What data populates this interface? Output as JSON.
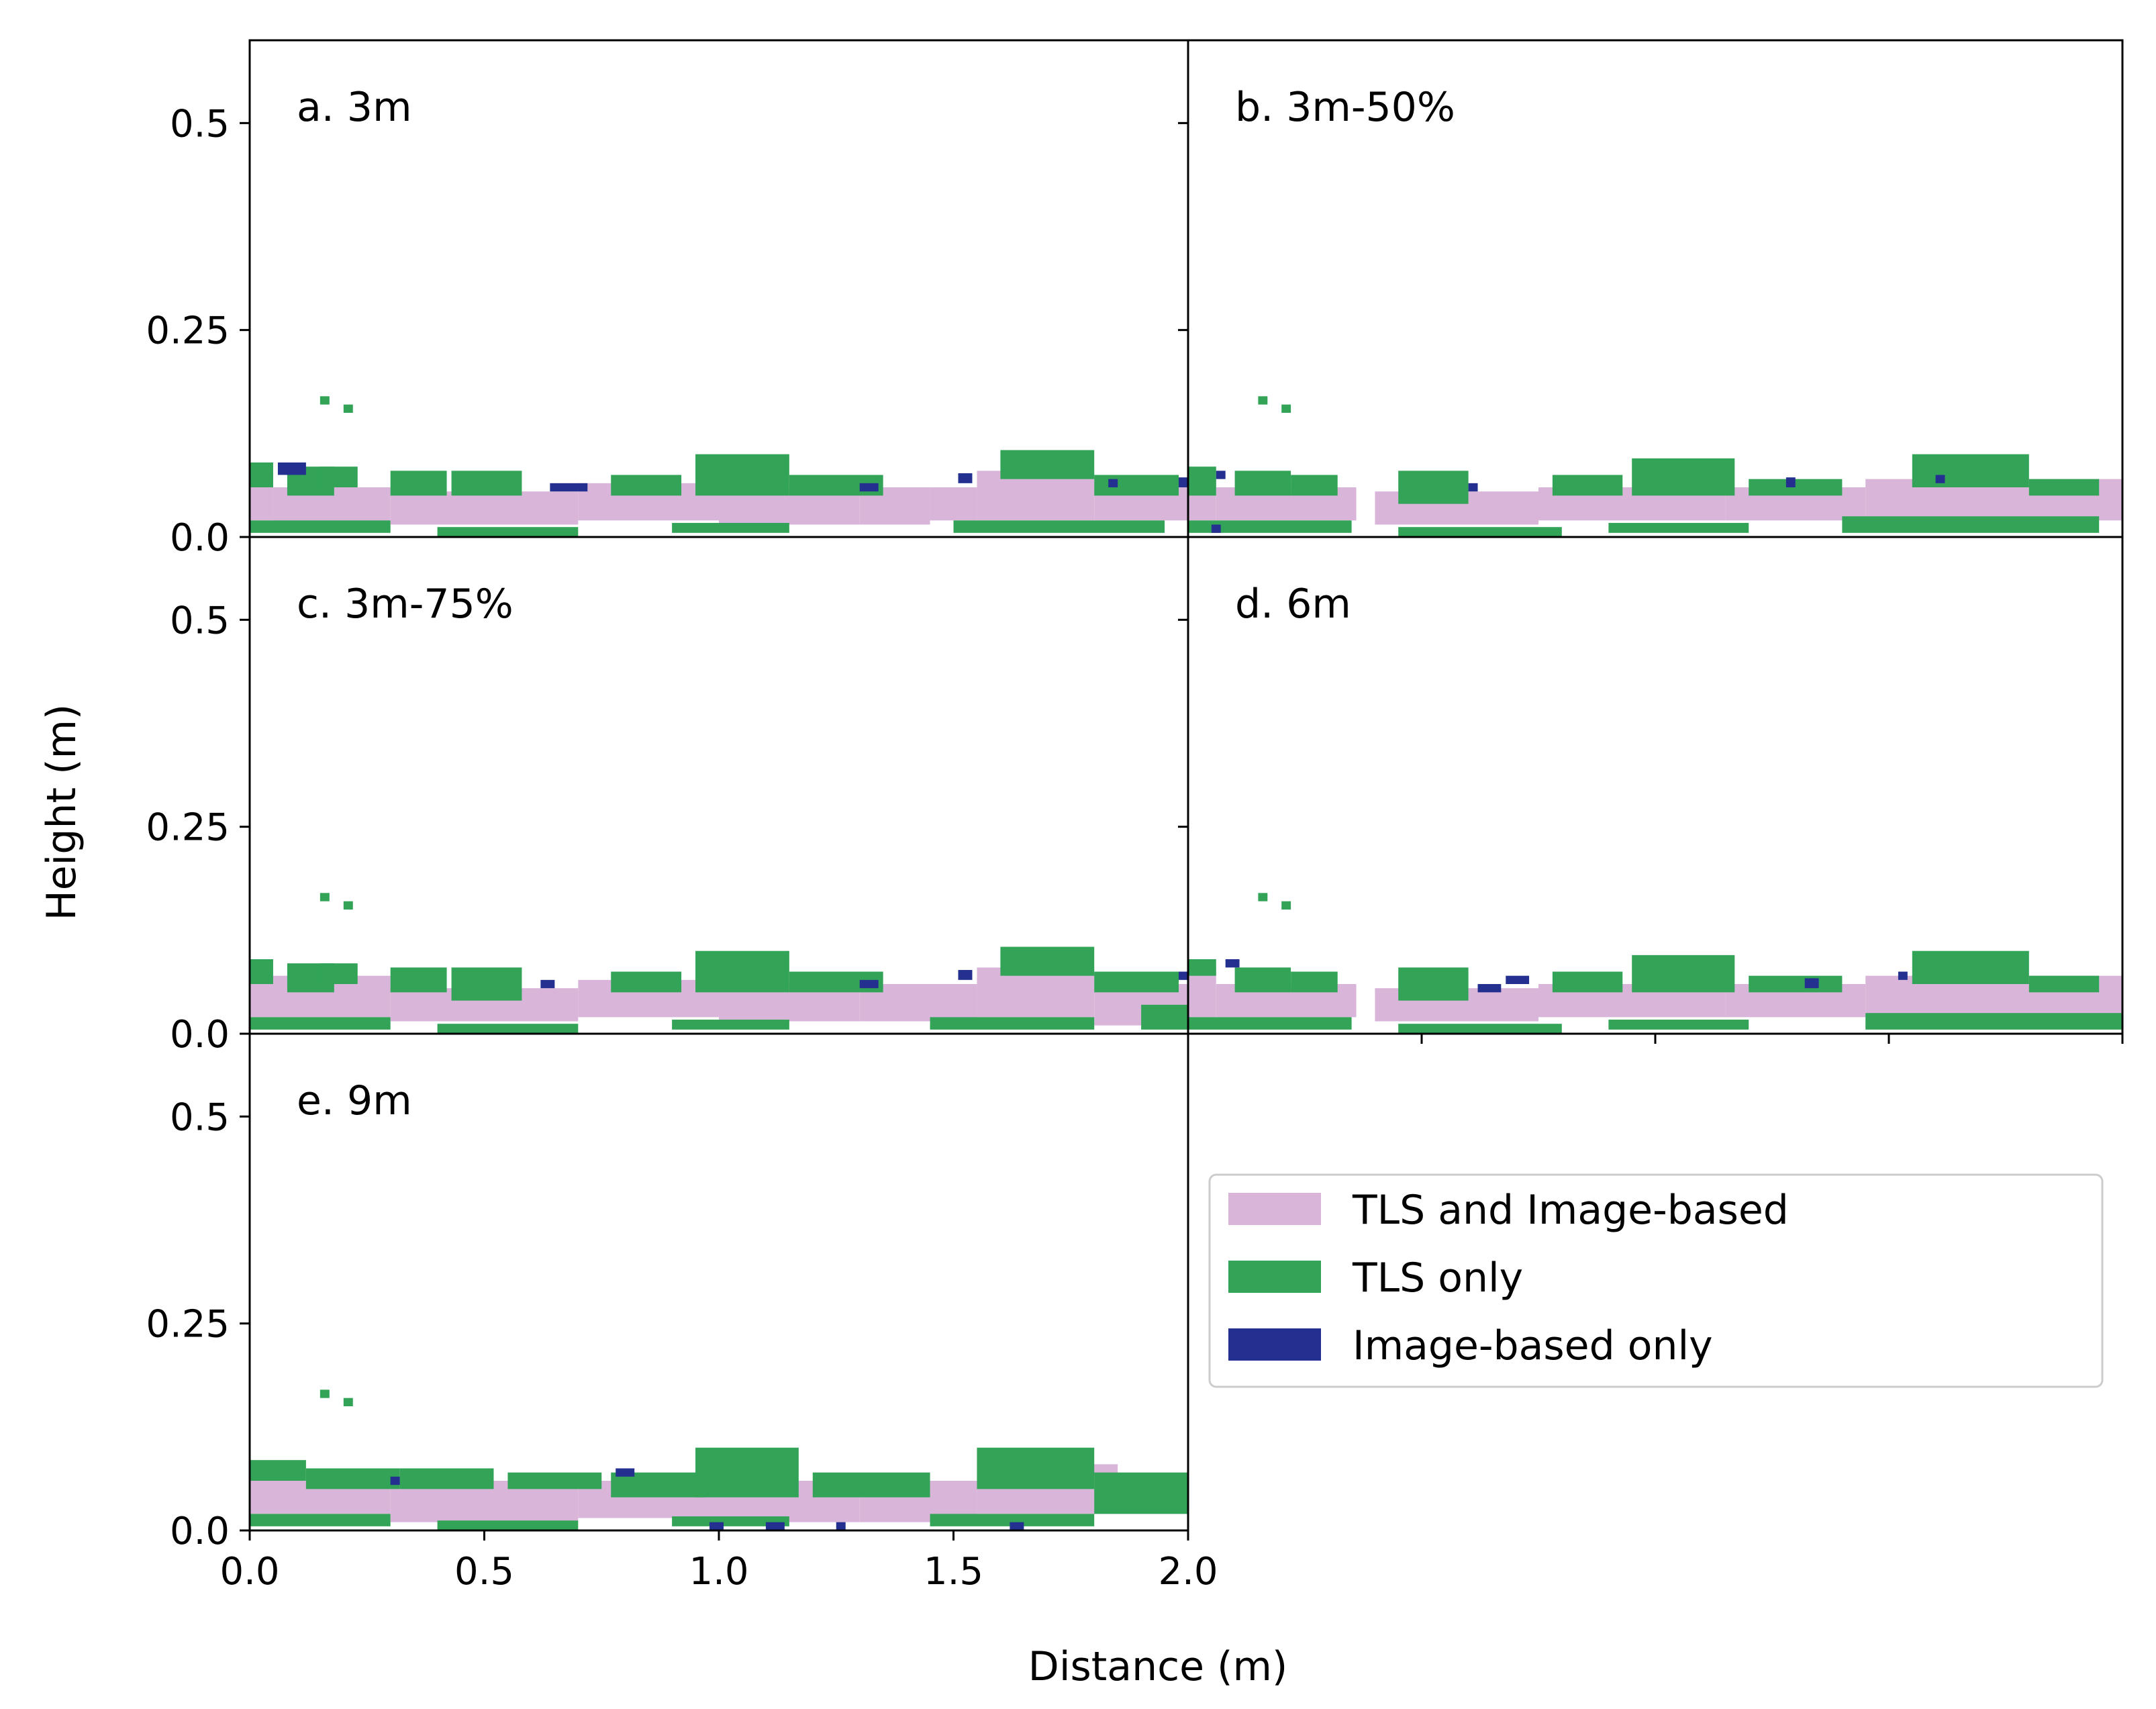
{
  "figure": {
    "xlabel": "Distance (m)",
    "ylabel": "Height (m)"
  },
  "colors": {
    "both": "#d9b6d9",
    "tls_only": "#33a457",
    "image_only": "#24308f",
    "axis": "#000000",
    "background": "#ffffff"
  },
  "legend": {
    "location": "lower-right empty panel",
    "items": [
      {
        "key": "both",
        "label": "TLS and Image-based"
      },
      {
        "key": "tls_only",
        "label": "TLS only"
      },
      {
        "key": "image_only",
        "label": "Image-based only"
      }
    ]
  },
  "chart_data": [
    {
      "type": "heatmap",
      "id": "a",
      "title": "a. 3m",
      "xlim": [
        0.0,
        2.0
      ],
      "ylim": [
        0.0,
        0.6
      ],
      "xticks": [
        "0.0",
        "0.5",
        "1.0",
        "1.5",
        "2.0"
      ],
      "yticks": [
        "0.0",
        "0.25",
        "0.5"
      ],
      "categories": [
        "TLS and Image-based",
        "TLS only",
        "Image-based only"
      ],
      "series": [
        {
          "name": "TLS and Image-based",
          "cells": [
            [
              0.0,
              0.02,
              0.05,
              0.06
            ],
            [
              0.05,
              0.01,
              0.25,
              0.05
            ],
            [
              0.3,
              0.015,
              0.4,
              0.04
            ],
            [
              0.7,
              0.02,
              0.3,
              0.045
            ],
            [
              1.0,
              0.015,
              0.3,
              0.045
            ],
            [
              1.3,
              0.015,
              0.15,
              0.045
            ],
            [
              1.45,
              0.02,
              0.1,
              0.04
            ],
            [
              1.55,
              0.02,
              0.25,
              0.06
            ],
            [
              1.8,
              0.02,
              0.2,
              0.04
            ]
          ]
        },
        {
          "name": "TLS only",
          "cells": [
            [
              0.0,
              0.06,
              0.05,
              0.03
            ],
            [
              0.08,
              0.05,
              0.1,
              0.035
            ],
            [
              0.15,
              0.06,
              0.08,
              0.025
            ],
            [
              0.3,
              0.05,
              0.12,
              0.03
            ],
            [
              0.43,
              0.05,
              0.15,
              0.03
            ],
            [
              0.77,
              0.05,
              0.15,
              0.025
            ],
            [
              0.95,
              0.05,
              0.2,
              0.05
            ],
            [
              1.15,
              0.05,
              0.2,
              0.025
            ],
            [
              1.6,
              0.07,
              0.2,
              0.035
            ],
            [
              1.8,
              0.05,
              0.18,
              0.025
            ],
            [
              0.0,
              0.005,
              0.3,
              0.015
            ],
            [
              0.4,
              0.0,
              0.3,
              0.012
            ],
            [
              0.9,
              0.005,
              0.25,
              0.012
            ],
            [
              1.5,
              0.005,
              0.45,
              0.015
            ],
            [
              0.15,
              0.16,
              0.02,
              0.01
            ],
            [
              0.2,
              0.15,
              0.02,
              0.01
            ]
          ]
        },
        {
          "name": "Image-based only",
          "cells": [
            [
              0.06,
              0.075,
              0.06,
              0.015
            ],
            [
              0.64,
              0.055,
              0.08,
              0.01
            ],
            [
              1.3,
              0.055,
              0.04,
              0.01
            ],
            [
              1.51,
              0.065,
              0.03,
              0.012
            ],
            [
              1.83,
              0.06,
              0.02,
              0.01
            ],
            [
              1.98,
              0.06,
              0.02,
              0.012
            ]
          ]
        }
      ]
    },
    {
      "type": "heatmap",
      "id": "b",
      "title": "b. 3m-50%",
      "xlim": [
        0.0,
        2.0
      ],
      "ylim": [
        0.0,
        0.6
      ],
      "xticks": [],
      "yticks": [],
      "categories": [
        "TLS and Image-based",
        "TLS only",
        "Image-based only"
      ],
      "series": [
        {
          "name": "TLS and Image-based",
          "cells": [
            [
              0.0,
              0.02,
              0.06,
              0.05
            ],
            [
              0.06,
              0.02,
              0.3,
              0.04
            ],
            [
              0.4,
              0.015,
              0.35,
              0.04
            ],
            [
              0.75,
              0.02,
              0.4,
              0.04
            ],
            [
              1.15,
              0.02,
              0.3,
              0.04
            ],
            [
              1.45,
              0.02,
              0.3,
              0.05
            ],
            [
              1.75,
              0.02,
              0.25,
              0.05
            ]
          ]
        },
        {
          "name": "TLS only",
          "cells": [
            [
              0.0,
              0.05,
              0.06,
              0.035
            ],
            [
              0.1,
              0.05,
              0.12,
              0.03
            ],
            [
              0.22,
              0.05,
              0.1,
              0.025
            ],
            [
              0.45,
              0.04,
              0.15,
              0.04
            ],
            [
              0.78,
              0.05,
              0.15,
              0.025
            ],
            [
              0.95,
              0.05,
              0.22,
              0.045
            ],
            [
              1.2,
              0.05,
              0.2,
              0.02
            ],
            [
              1.55,
              0.06,
              0.25,
              0.04
            ],
            [
              1.8,
              0.05,
              0.15,
              0.02
            ],
            [
              0.0,
              0.005,
              0.35,
              0.015
            ],
            [
              0.45,
              0.0,
              0.35,
              0.012
            ],
            [
              0.9,
              0.005,
              0.3,
              0.012
            ],
            [
              1.4,
              0.005,
              0.55,
              0.02
            ],
            [
              0.15,
              0.16,
              0.02,
              0.01
            ],
            [
              0.2,
              0.15,
              0.02,
              0.01
            ]
          ]
        },
        {
          "name": "Image-based only",
          "cells": [
            [
              0.06,
              0.07,
              0.02,
              0.01
            ],
            [
              0.6,
              0.055,
              0.02,
              0.01
            ],
            [
              1.28,
              0.06,
              0.02,
              0.012
            ],
            [
              1.6,
              0.065,
              0.02,
              0.01
            ],
            [
              0.05,
              0.005,
              0.02,
              0.01
            ]
          ]
        }
      ]
    },
    {
      "type": "heatmap",
      "id": "c",
      "title": "c. 3m-75%",
      "xlim": [
        0.0,
        2.0
      ],
      "ylim": [
        0.0,
        0.6
      ],
      "xticks": [],
      "yticks": [
        "0.0",
        "0.25",
        "0.5"
      ],
      "categories": [
        "TLS and Image-based",
        "TLS only",
        "Image-based only"
      ],
      "series": [
        {
          "name": "TLS and Image-based",
          "cells": [
            [
              0.0,
              0.02,
              0.3,
              0.05
            ],
            [
              0.3,
              0.015,
              0.4,
              0.04
            ],
            [
              0.7,
              0.02,
              0.3,
              0.045
            ],
            [
              1.0,
              0.015,
              0.3,
              0.045
            ],
            [
              1.3,
              0.015,
              0.25,
              0.045
            ],
            [
              1.55,
              0.02,
              0.25,
              0.06
            ],
            [
              1.8,
              0.01,
              0.2,
              0.05
            ]
          ]
        },
        {
          "name": "TLS only",
          "cells": [
            [
              0.0,
              0.06,
              0.05,
              0.03
            ],
            [
              0.08,
              0.05,
              0.1,
              0.035
            ],
            [
              0.15,
              0.06,
              0.08,
              0.025
            ],
            [
              0.3,
              0.05,
              0.12,
              0.03
            ],
            [
              0.43,
              0.04,
              0.15,
              0.04
            ],
            [
              0.77,
              0.05,
              0.15,
              0.025
            ],
            [
              0.95,
              0.05,
              0.2,
              0.05
            ],
            [
              1.15,
              0.05,
              0.2,
              0.025
            ],
            [
              1.6,
              0.07,
              0.2,
              0.035
            ],
            [
              1.8,
              0.05,
              0.18,
              0.025
            ],
            [
              0.0,
              0.005,
              0.3,
              0.015
            ],
            [
              0.4,
              0.0,
              0.3,
              0.012
            ],
            [
              0.9,
              0.005,
              0.25,
              0.012
            ],
            [
              1.45,
              0.005,
              0.35,
              0.015
            ],
            [
              1.9,
              0.005,
              0.1,
              0.03
            ],
            [
              0.15,
              0.16,
              0.02,
              0.01
            ],
            [
              0.2,
              0.15,
              0.02,
              0.01
            ]
          ]
        },
        {
          "name": "Image-based only",
          "cells": [
            [
              0.62,
              0.055,
              0.03,
              0.01
            ],
            [
              1.3,
              0.055,
              0.04,
              0.01
            ],
            [
              1.51,
              0.065,
              0.03,
              0.012
            ],
            [
              1.98,
              0.065,
              0.02,
              0.01
            ]
          ]
        }
      ]
    },
    {
      "type": "heatmap",
      "id": "d",
      "title": "d. 6m",
      "xlim": [
        0.0,
        2.0
      ],
      "ylim": [
        0.0,
        0.6
      ],
      "xticks": [
        "0.5",
        "1.0",
        "1.5",
        "2.0"
      ],
      "yticks": [],
      "categories": [
        "TLS and Image-based",
        "TLS only",
        "Image-based only"
      ],
      "series": [
        {
          "name": "TLS and Image-based",
          "cells": [
            [
              0.0,
              0.02,
              0.06,
              0.06
            ],
            [
              0.06,
              0.02,
              0.3,
              0.04
            ],
            [
              0.4,
              0.015,
              0.35,
              0.04
            ],
            [
              0.75,
              0.02,
              0.4,
              0.04
            ],
            [
              1.15,
              0.02,
              0.3,
              0.04
            ],
            [
              1.45,
              0.02,
              0.3,
              0.05
            ],
            [
              1.75,
              0.02,
              0.25,
              0.05
            ]
          ]
        },
        {
          "name": "TLS only",
          "cells": [
            [
              0.0,
              0.07,
              0.06,
              0.02
            ],
            [
              0.1,
              0.05,
              0.12,
              0.03
            ],
            [
              0.22,
              0.05,
              0.1,
              0.025
            ],
            [
              0.45,
              0.04,
              0.15,
              0.04
            ],
            [
              0.78,
              0.05,
              0.15,
              0.025
            ],
            [
              0.95,
              0.05,
              0.22,
              0.045
            ],
            [
              1.2,
              0.05,
              0.2,
              0.02
            ],
            [
              1.55,
              0.06,
              0.25,
              0.04
            ],
            [
              1.8,
              0.05,
              0.15,
              0.02
            ],
            [
              0.0,
              0.005,
              0.35,
              0.015
            ],
            [
              0.45,
              0.0,
              0.35,
              0.012
            ],
            [
              0.9,
              0.005,
              0.3,
              0.012
            ],
            [
              1.45,
              0.005,
              0.55,
              0.02
            ],
            [
              0.15,
              0.16,
              0.02,
              0.01
            ],
            [
              0.2,
              0.15,
              0.02,
              0.01
            ]
          ]
        },
        {
          "name": "Image-based only",
          "cells": [
            [
              0.08,
              0.08,
              0.03,
              0.01
            ],
            [
              0.62,
              0.05,
              0.05,
              0.01
            ],
            [
              0.68,
              0.06,
              0.05,
              0.01
            ],
            [
              1.32,
              0.055,
              0.03,
              0.012
            ],
            [
              1.52,
              0.065,
              0.02,
              0.01
            ]
          ]
        }
      ]
    },
    {
      "type": "heatmap",
      "id": "e",
      "title": "e. 9m",
      "xlim": [
        0.0,
        2.0
      ],
      "ylim": [
        0.0,
        0.6
      ],
      "xticks": [
        "0.0",
        "0.5",
        "1.0",
        "1.5",
        "2.0"
      ],
      "yticks": [
        "0.0",
        "0.25",
        "0.5"
      ],
      "categories": [
        "TLS and Image-based",
        "TLS only",
        "Image-based only"
      ],
      "series": [
        {
          "name": "TLS and Image-based",
          "cells": [
            [
              0.0,
              0.02,
              0.3,
              0.04
            ],
            [
              0.3,
              0.01,
              0.4,
              0.05
            ],
            [
              0.7,
              0.015,
              0.3,
              0.045
            ],
            [
              1.0,
              0.01,
              0.3,
              0.05
            ],
            [
              1.3,
              0.01,
              0.25,
              0.05
            ],
            [
              1.55,
              0.02,
              0.3,
              0.06
            ],
            [
              1.85,
              0.02,
              0.15,
              0.04
            ]
          ]
        },
        {
          "name": "TLS only",
          "cells": [
            [
              0.0,
              0.06,
              0.12,
              0.025
            ],
            [
              0.12,
              0.05,
              0.2,
              0.025
            ],
            [
              0.32,
              0.05,
              0.2,
              0.025
            ],
            [
              0.55,
              0.05,
              0.2,
              0.02
            ],
            [
              0.77,
              0.04,
              0.2,
              0.03
            ],
            [
              0.95,
              0.04,
              0.22,
              0.06
            ],
            [
              1.2,
              0.04,
              0.25,
              0.03
            ],
            [
              1.55,
              0.05,
              0.25,
              0.05
            ],
            [
              1.8,
              0.02,
              0.2,
              0.05
            ],
            [
              0.0,
              0.005,
              0.3,
              0.015
            ],
            [
              0.4,
              0.0,
              0.3,
              0.012
            ],
            [
              0.9,
              0.005,
              0.25,
              0.012
            ],
            [
              1.45,
              0.005,
              0.35,
              0.015
            ],
            [
              0.15,
              0.16,
              0.02,
              0.01
            ],
            [
              0.2,
              0.15,
              0.02,
              0.01
            ]
          ]
        },
        {
          "name": "Image-based only",
          "cells": [
            [
              0.3,
              0.055,
              0.02,
              0.01
            ],
            [
              0.78,
              0.065,
              0.04,
              0.01
            ],
            [
              0.98,
              0.0,
              0.03,
              0.01
            ],
            [
              1.1,
              0.0,
              0.04,
              0.01
            ],
            [
              1.25,
              0.0,
              0.02,
              0.01
            ],
            [
              1.62,
              0.0,
              0.03,
              0.01
            ]
          ]
        }
      ]
    }
  ]
}
